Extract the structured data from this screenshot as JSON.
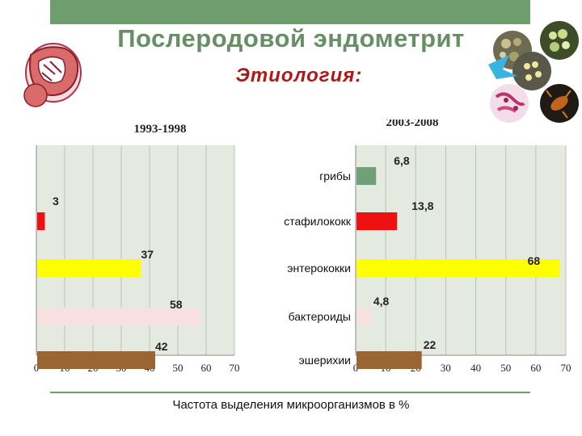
{
  "header": {
    "title": "Послеродовой эндометрит",
    "subtitle": "Этиология:"
  },
  "footer": {
    "caption": "Частота выделения микроорганизмов в %"
  },
  "chart_data": [
    {
      "type": "bar",
      "orientation": "horizontal",
      "title": "1993-1998",
      "categories": [
        "эшерихии",
        "бактероиды",
        "энтерококки",
        "стафилококк",
        "грибы"
      ],
      "values": [
        42,
        58,
        37,
        3,
        null
      ],
      "data_labels": [
        "42",
        "58",
        "37",
        "3",
        ""
      ],
      "colors": [
        "#996633",
        "#f9e0e0",
        "#ffff00",
        "#ee1111",
        "#6fa07a"
      ],
      "xlim": [
        0,
        70
      ],
      "x_ticks": [
        0,
        10,
        20,
        30,
        40,
        50,
        60,
        70
      ],
      "grid": true,
      "category_labels_shown": false
    },
    {
      "type": "bar",
      "orientation": "horizontal",
      "title": "2003-2008",
      "categories": [
        "эшерихии",
        "бактероиды",
        "энтерококки",
        "стафилококк",
        "грибы"
      ],
      "values": [
        22,
        4.8,
        68,
        13.8,
        6.8
      ],
      "data_labels": [
        "22",
        "4,8",
        "68",
        "13,8",
        "6,8"
      ],
      "colors": [
        "#996633",
        "#f9e0e0",
        "#ffff00",
        "#ee1111",
        "#6fa07a"
      ],
      "xlim": [
        0,
        70
      ],
      "x_ticks": [
        0,
        10,
        20,
        30,
        40,
        50,
        60,
        70
      ],
      "grid": true,
      "category_labels_shown": true
    }
  ]
}
